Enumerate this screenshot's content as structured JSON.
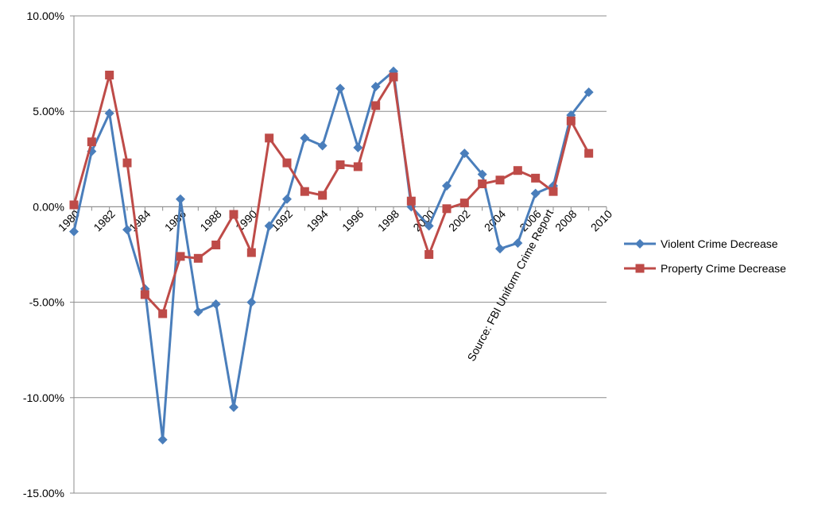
{
  "chart_data": {
    "type": "line",
    "title": "",
    "xlabel": "",
    "ylabel": "",
    "x": [
      1980,
      1981,
      1982,
      1983,
      1984,
      1985,
      1986,
      1987,
      1988,
      1989,
      1990,
      1991,
      1992,
      1993,
      1994,
      1995,
      1996,
      1997,
      1998,
      1999,
      2000,
      2001,
      2002,
      2003,
      2004,
      2005,
      2006,
      2007,
      2008,
      2009
    ],
    "x_ticks": [
      "1980",
      "1982",
      "1984",
      "1986",
      "1988",
      "1990",
      "1992",
      "1994",
      "1996",
      "1998",
      "2000",
      "2002",
      "2004",
      "2006",
      "2008",
      "2010"
    ],
    "x_range": [
      1980,
      2010
    ],
    "ylim": [
      -15,
      10
    ],
    "y_ticks": [
      "-15.00%",
      "-10.00%",
      "-5.00%",
      "0.00%",
      "5.00%",
      "10.00%"
    ],
    "y_unit": "%",
    "grid": "horizontal",
    "legend_position": "right",
    "series": [
      {
        "name": "Violent Crime Decrease",
        "color": "#4a7ebb",
        "marker": "diamond",
        "values": [
          -1.3,
          2.9,
          4.9,
          -1.2,
          -4.3,
          -12.2,
          0.4,
          -5.5,
          -5.1,
          -10.5,
          -5.0,
          -1.0,
          0.4,
          3.6,
          3.2,
          6.2,
          3.1,
          6.3,
          7.1,
          0.0,
          -1.0,
          1.1,
          2.8,
          1.7,
          -2.2,
          -1.9,
          0.7,
          1.1,
          4.8,
          6.0
        ]
      },
      {
        "name": "Property Crime Decrease",
        "color": "#be4b48",
        "marker": "square",
        "values": [
          0.1,
          3.4,
          6.9,
          2.3,
          -4.6,
          -5.6,
          -2.6,
          -2.7,
          -2.0,
          -0.4,
          -2.4,
          3.6,
          2.3,
          0.8,
          0.6,
          2.2,
          2.1,
          5.3,
          6.8,
          0.3,
          -2.5,
          -0.1,
          0.2,
          1.2,
          1.4,
          1.9,
          1.5,
          0.8,
          4.5,
          2.8
        ]
      }
    ],
    "annotations": [
      "Source: FBI Uniform Crime Report"
    ]
  }
}
